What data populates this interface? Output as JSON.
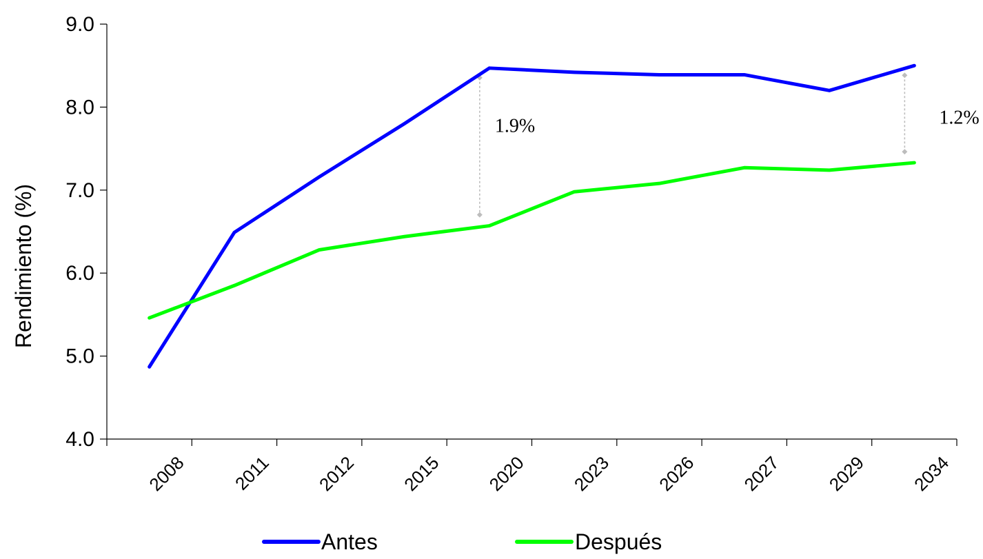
{
  "chart_data": {
    "type": "line",
    "categories": [
      "2008",
      "2011",
      "2012",
      "2015",
      "2020",
      "2023",
      "2026",
      "2027",
      "2029",
      "2034"
    ],
    "ylabel": "Rendimiento  (%)",
    "ylim": [
      4.0,
      9.0
    ],
    "yticks": [
      "4.0",
      "5.0",
      "6.0",
      "7.0",
      "8.0",
      "9.0"
    ],
    "grid": false,
    "legend_position": "bottom",
    "series": [
      {
        "name": "Antes",
        "color": "#0000ff",
        "values": [
          4.87,
          6.49,
          7.16,
          7.8,
          8.47,
          8.42,
          8.39,
          8.39,
          8.2,
          8.5
        ]
      },
      {
        "name": "Después",
        "color": "#00ff00",
        "values": [
          5.46,
          5.85,
          6.28,
          6.44,
          6.57,
          6.98,
          7.08,
          7.27,
          7.24,
          7.33
        ]
      }
    ],
    "annotations": [
      {
        "text": "1.9%",
        "category": "2020",
        "from_series": "Después",
        "to_series": "Antes"
      },
      {
        "text": "1.2%",
        "category": "2034",
        "from_series": "Después",
        "to_series": "Antes"
      }
    ]
  }
}
